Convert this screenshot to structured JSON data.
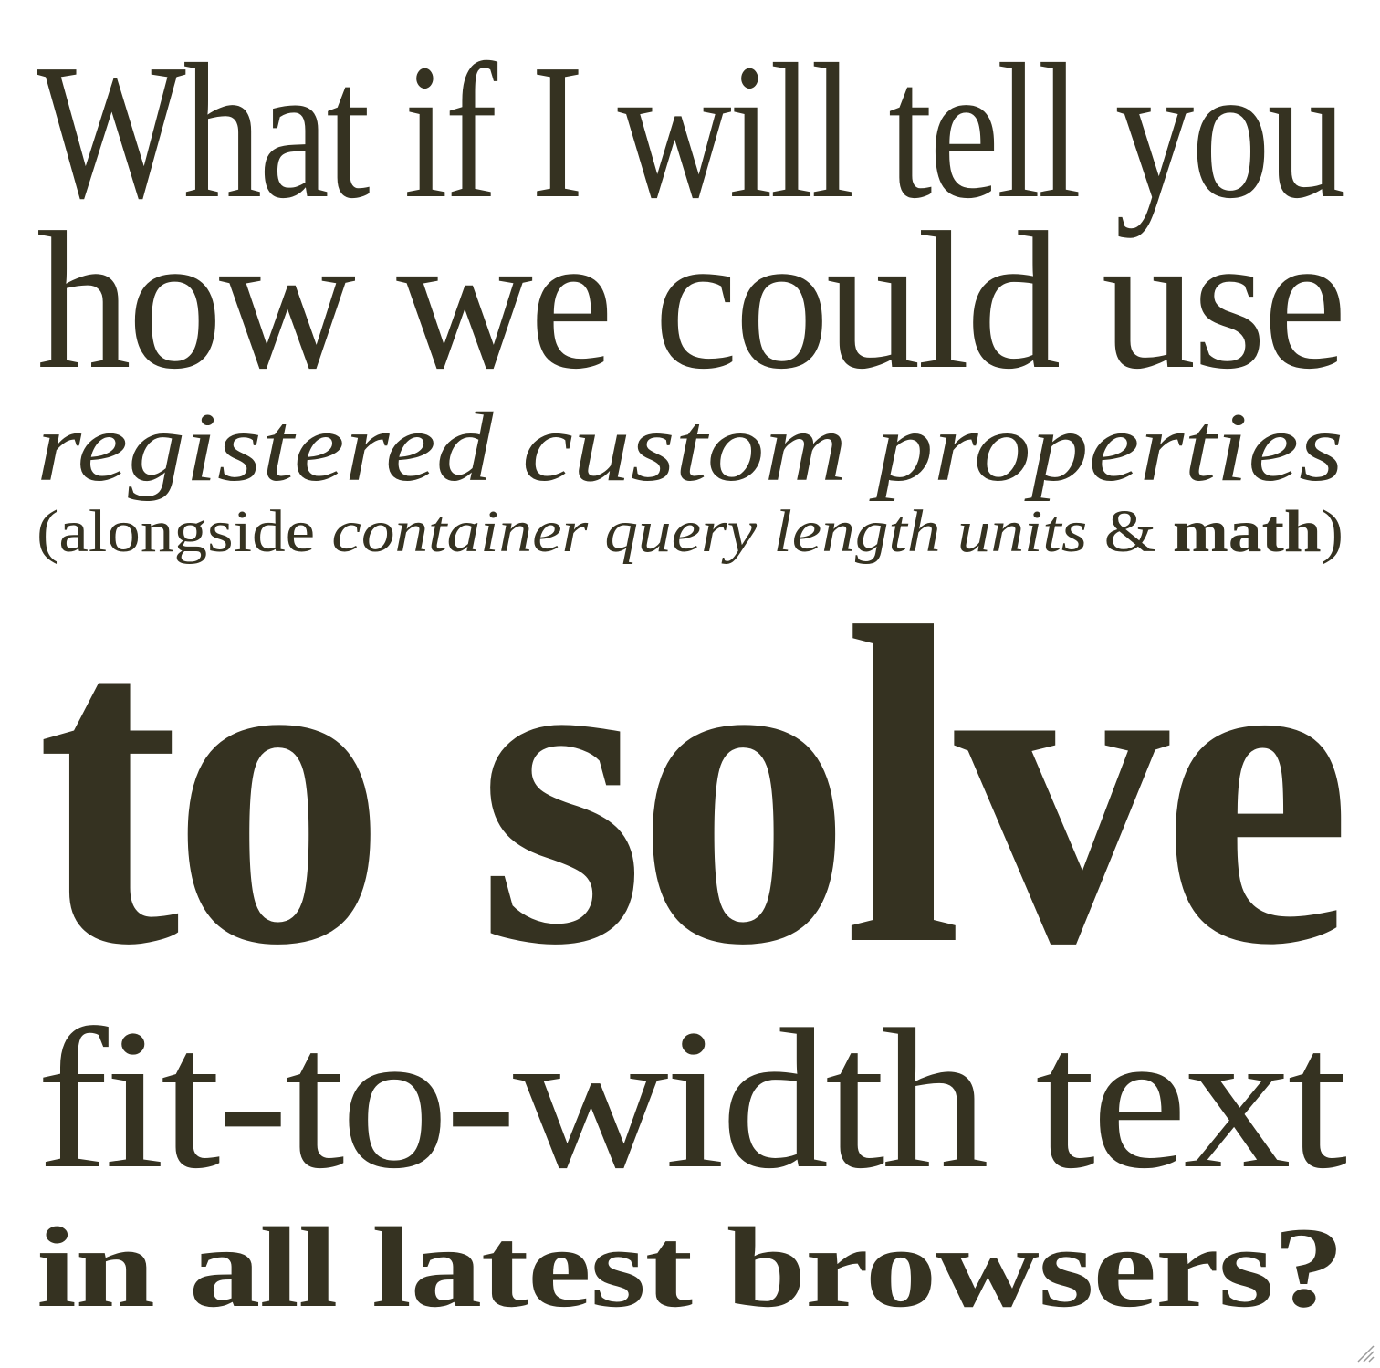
{
  "heading": {
    "line1": "What if I will tell you",
    "line2": "how we could use",
    "line3": "registered custom properties",
    "line4": {
      "open": "(alongside ",
      "italic": "container query length units",
      "amp": " & ",
      "bold": "math",
      "close": ")"
    },
    "line5": "to solve",
    "line6": "fit-to-width text",
    "line7": "in all latest browsers?"
  },
  "colors": {
    "text": "#353221",
    "background": "#ffffff"
  },
  "icons": {
    "corner": "resize-grip-icon"
  }
}
